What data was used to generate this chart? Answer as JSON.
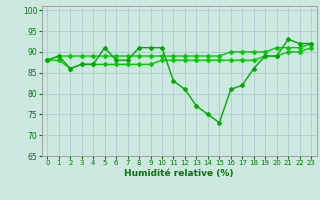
{
  "x": [
    0,
    1,
    2,
    3,
    4,
    5,
    6,
    7,
    8,
    9,
    10,
    11,
    12,
    13,
    14,
    15,
    16,
    17,
    18,
    19,
    20,
    21,
    22,
    23
  ],
  "y_main": [
    88,
    89,
    86,
    87,
    87,
    91,
    88,
    88,
    91,
    91,
    91,
    83,
    81,
    77,
    75,
    73,
    81,
    82,
    86,
    89,
    89,
    93,
    92,
    92
  ],
  "y_low": [
    88,
    88,
    86,
    87,
    87,
    87,
    87,
    87,
    87,
    87,
    88,
    88,
    88,
    88,
    88,
    88,
    88,
    88,
    88,
    89,
    89,
    90,
    90,
    91
  ],
  "y_high": [
    88,
    89,
    89,
    89,
    89,
    89,
    89,
    89,
    89,
    89,
    89,
    89,
    89,
    89,
    89,
    89,
    90,
    90,
    90,
    90,
    91,
    91,
    91,
    92
  ],
  "xlabel": "Humidité relative (%)",
  "ylim": [
    65,
    101
  ],
  "xlim": [
    -0.5,
    23.5
  ],
  "yticks": [
    65,
    70,
    75,
    80,
    85,
    90,
    95,
    100
  ],
  "xticks": [
    0,
    1,
    2,
    3,
    4,
    5,
    6,
    7,
    8,
    9,
    10,
    11,
    12,
    13,
    14,
    15,
    16,
    17,
    18,
    19,
    20,
    21,
    22,
    23
  ],
  "bg_color": "#cce8e0",
  "grid_color": "#aacccc",
  "line_color_main": "#00aa00",
  "line_color_smooth": "#00cc00",
  "marker": "D",
  "markersize": 2.0,
  "linewidth_main": 1.0,
  "linewidth_smooth": 1.0
}
